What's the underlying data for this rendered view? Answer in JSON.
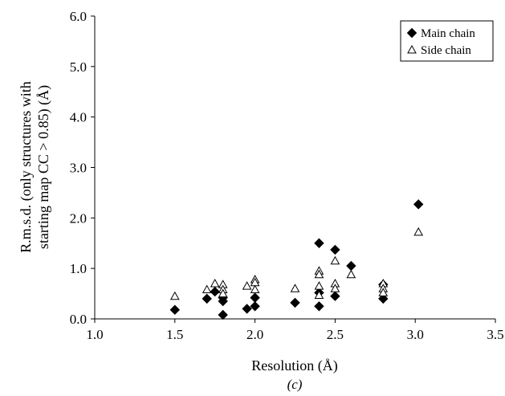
{
  "chart_data": {
    "type": "scatter",
    "xlabel": "Resolution (Å)",
    "ylabel_lines": [
      "R.m.s.d. (only structures with",
      "starting map CC > 0.85) (Å)"
    ],
    "xlim": [
      1.0,
      3.5
    ],
    "ylim": [
      0.0,
      6.0
    ],
    "xticks": [
      "1.0",
      "1.5",
      "2.0",
      "2.5",
      "3.0",
      "3.5"
    ],
    "yticks": [
      "0.0",
      "1.0",
      "2.0",
      "3.0",
      "4.0",
      "5.0",
      "6.0"
    ],
    "grid": false,
    "legend_position": "top-right",
    "caption": "(c)",
    "series": [
      {
        "name": "Main chain",
        "marker": "filled-diamond",
        "color": "#000000",
        "points": [
          [
            1.5,
            0.18
          ],
          [
            1.7,
            0.4
          ],
          [
            1.75,
            0.54
          ],
          [
            1.8,
            0.08
          ],
          [
            1.8,
            0.35
          ],
          [
            1.8,
            0.42
          ],
          [
            1.95,
            0.2
          ],
          [
            2.0,
            0.25
          ],
          [
            2.0,
            0.42
          ],
          [
            2.25,
            0.32
          ],
          [
            2.4,
            1.5
          ],
          [
            2.4,
            0.52
          ],
          [
            2.4,
            0.25
          ],
          [
            2.5,
            1.37
          ],
          [
            2.5,
            0.45
          ],
          [
            2.6,
            1.05
          ],
          [
            2.8,
            0.68
          ],
          [
            2.8,
            0.4
          ],
          [
            3.02,
            2.27
          ]
        ]
      },
      {
        "name": "Side chain",
        "marker": "open-triangle",
        "color": "#000000",
        "points": [
          [
            1.5,
            0.45
          ],
          [
            1.7,
            0.58
          ],
          [
            1.75,
            0.7
          ],
          [
            1.8,
            0.68
          ],
          [
            1.8,
            0.58
          ],
          [
            1.8,
            0.5
          ],
          [
            1.95,
            0.65
          ],
          [
            2.0,
            0.78
          ],
          [
            2.0,
            0.72
          ],
          [
            2.0,
            0.58
          ],
          [
            2.25,
            0.6
          ],
          [
            2.4,
            0.95
          ],
          [
            2.4,
            0.88
          ],
          [
            2.4,
            0.65
          ],
          [
            2.4,
            0.47
          ],
          [
            2.5,
            1.15
          ],
          [
            2.5,
            0.7
          ],
          [
            2.5,
            0.6
          ],
          [
            2.6,
            0.88
          ],
          [
            2.8,
            0.7
          ],
          [
            2.8,
            0.6
          ],
          [
            2.8,
            0.52
          ],
          [
            3.02,
            1.72
          ]
        ]
      }
    ]
  }
}
